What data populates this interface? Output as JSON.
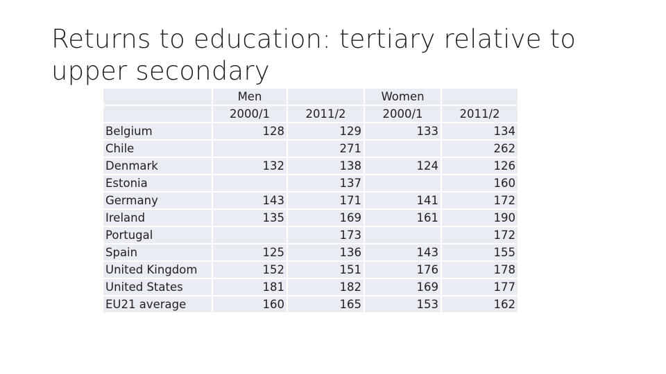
{
  "title": "Returns to education: tertiary relative to upper secondary",
  "table": {
    "group_headers": [
      "",
      "Men",
      "",
      "Women",
      ""
    ],
    "period_headers": [
      "",
      "2000/1",
      "2011/2",
      "2000/1",
      "2011/2"
    ],
    "rows": [
      {
        "country": "Belgium",
        "men_2000": "128",
        "men_2011": "129",
        "women_2000": "133",
        "women_2011": "134"
      },
      {
        "country": "Chile",
        "men_2000": "",
        "men_2011": "271",
        "women_2000": "",
        "women_2011": "262"
      },
      {
        "country": "Denmark",
        "men_2000": "132",
        "men_2011": "138",
        "women_2000": "124",
        "women_2011": "126"
      },
      {
        "country": "Estonia",
        "men_2000": "",
        "men_2011": "137",
        "women_2000": "",
        "women_2011": "160"
      },
      {
        "country": "Germany",
        "men_2000": "143",
        "men_2011": "171",
        "women_2000": "141",
        "women_2011": "172"
      },
      {
        "country": "Ireland",
        "men_2000": "135",
        "men_2011": "169",
        "women_2000": "161",
        "women_2011": "190"
      },
      {
        "country": "Portugal",
        "men_2000": "",
        "men_2011": "173",
        "women_2000": "",
        "women_2011": "172"
      },
      {
        "country": "Spain",
        "men_2000": "125",
        "men_2011": "136",
        "women_2000": "143",
        "women_2011": "155"
      },
      {
        "country": "United Kingdom",
        "men_2000": "152",
        "men_2011": "151",
        "women_2000": "176",
        "women_2011": "178"
      },
      {
        "country": "United States",
        "men_2000": "181",
        "men_2011": "182",
        "women_2000": "169",
        "women_2011": "177"
      },
      {
        "country": "EU21 average",
        "men_2000": "160",
        "men_2011": "165",
        "women_2000": "153",
        "women_2011": "162"
      }
    ]
  }
}
